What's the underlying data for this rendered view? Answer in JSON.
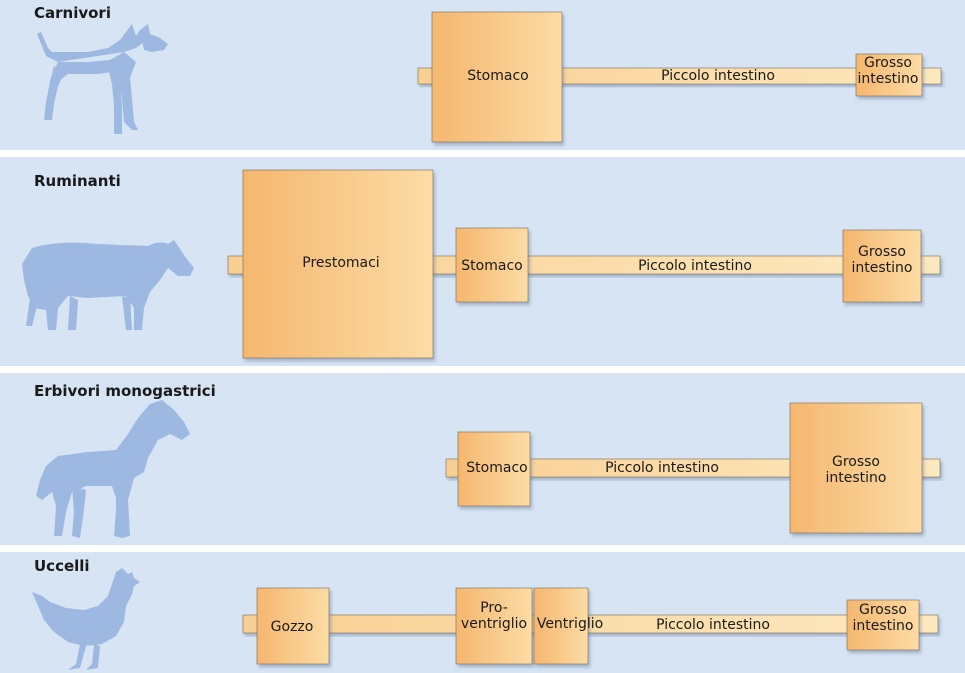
{
  "colors": {
    "band": "#d6e4f3",
    "silhouette": "#9db9e1",
    "organ_dark": "#f4b872",
    "organ_mid": "#f8cc8e",
    "organ_light": "#fce3b0",
    "stroke": "#7a6a55"
  },
  "groups": [
    {
      "title": "Carnivori",
      "icon": "dog-silhouette-icon",
      "organs": [
        {
          "label": [
            "Stomaco"
          ]
        },
        {
          "label": [
            "Piccolo intestino"
          ]
        },
        {
          "label": [
            "Grosso",
            "intestino"
          ]
        }
      ]
    },
    {
      "title": "Ruminanti",
      "icon": "cow-silhouette-icon",
      "organs": [
        {
          "label": [
            "Prestomaci"
          ]
        },
        {
          "label": [
            "Stomaco"
          ]
        },
        {
          "label": [
            "Piccolo intestino"
          ]
        },
        {
          "label": [
            "Grosso",
            "intestino"
          ]
        }
      ]
    },
    {
      "title": "Erbivori monogastrici",
      "icon": "horse-silhouette-icon",
      "organs": [
        {
          "label": [
            "Stomaco"
          ]
        },
        {
          "label": [
            "Piccolo intestino"
          ]
        },
        {
          "label": [
            "Grosso",
            "intestino"
          ]
        }
      ]
    },
    {
      "title": "Uccelli",
      "icon": "chicken-silhouette-icon",
      "organs": [
        {
          "label": [
            "Gozzo"
          ]
        },
        {
          "label": [
            "Pro-",
            "ventriglio"
          ]
        },
        {
          "label": [
            "Ventriglio"
          ]
        },
        {
          "label": [
            "Piccolo intestino"
          ]
        },
        {
          "label": [
            "Grosso",
            "intestino"
          ]
        }
      ]
    }
  ]
}
